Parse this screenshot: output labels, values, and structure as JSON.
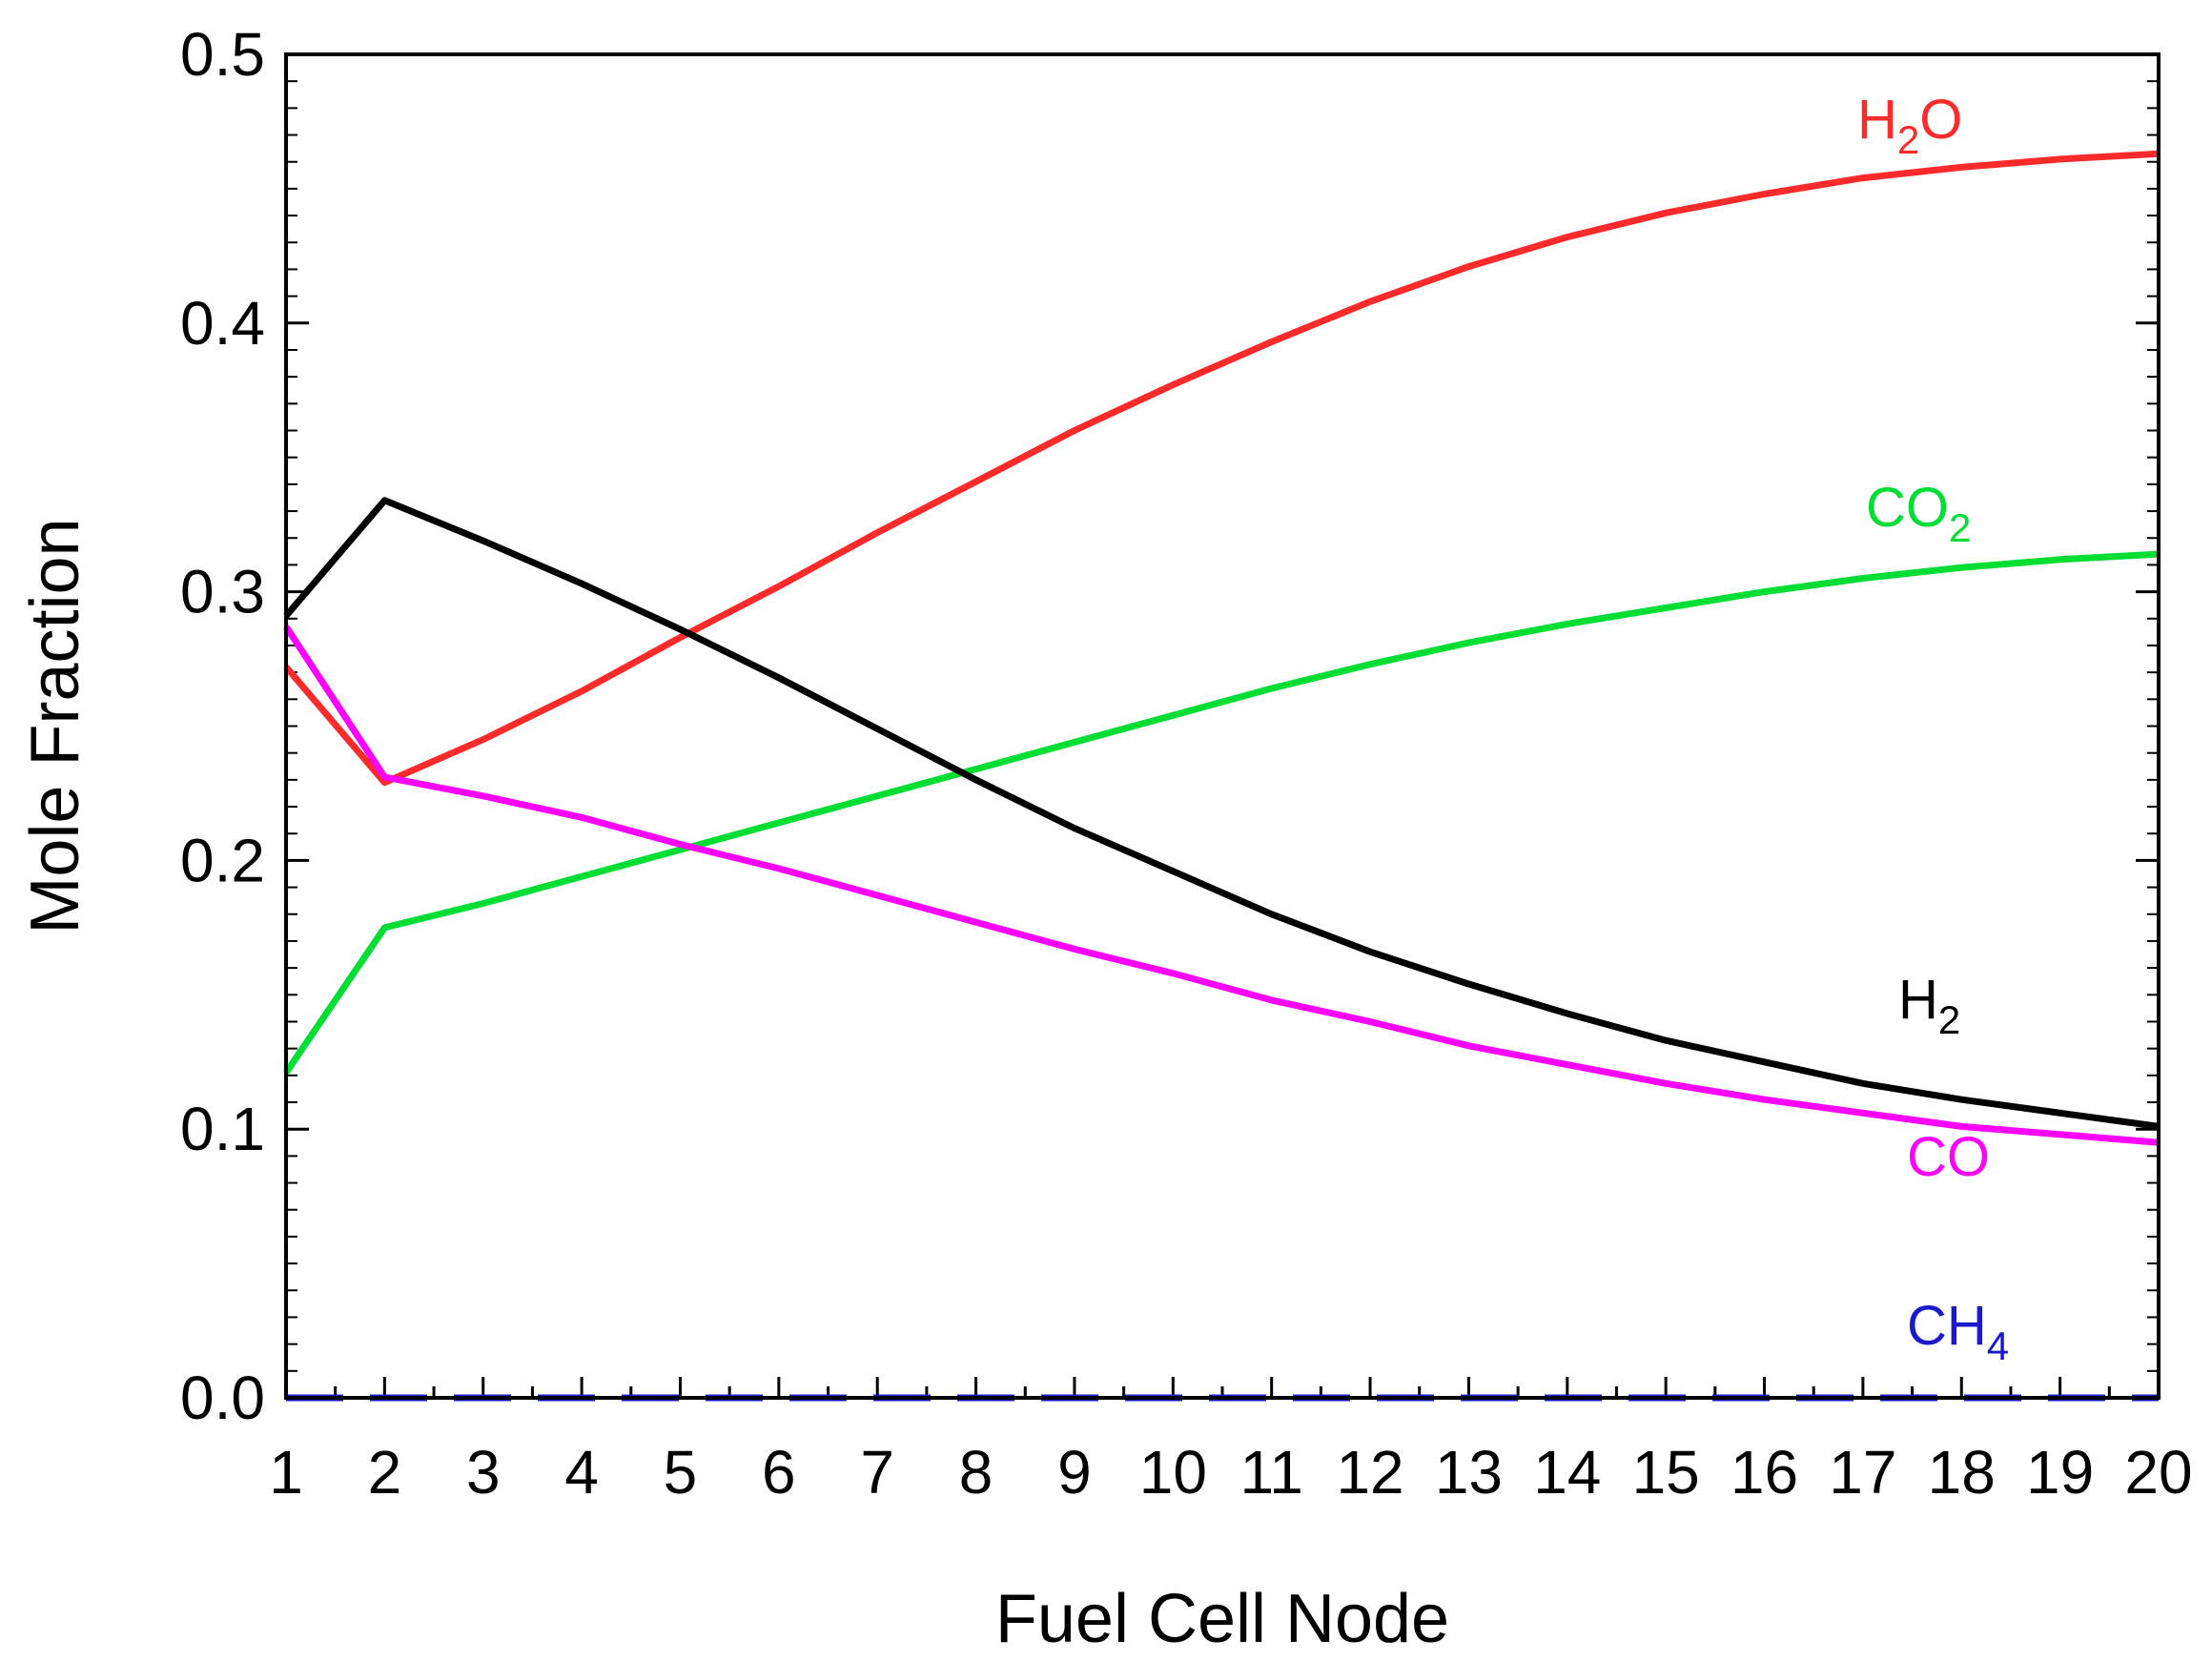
{
  "chart_data": {
    "type": "line",
    "title": "",
    "xlabel": "Fuel Cell Node",
    "ylabel": "Mole Fraction",
    "xlim": [
      1,
      20
    ],
    "ylim": [
      0.0,
      0.5
    ],
    "xticks": [
      1,
      2,
      3,
      4,
      5,
      6,
      7,
      8,
      9,
      10,
      11,
      12,
      13,
      14,
      15,
      16,
      17,
      18,
      19,
      20
    ],
    "yticks": [
      0.0,
      0.1,
      0.2,
      0.3,
      0.4,
      0.5
    ],
    "ytick_labels": [
      "0.0",
      "0.1",
      "0.2",
      "0.3",
      "0.4",
      "0.5"
    ],
    "x": [
      1,
      2,
      3,
      4,
      5,
      6,
      7,
      8,
      9,
      10,
      11,
      12,
      13,
      14,
      15,
      16,
      17,
      18,
      19,
      20
    ],
    "series": [
      {
        "name": "H2O",
        "label": "H",
        "sub": "2",
        "suffix": "O",
        "color": "#ff2a2a",
        "dashed": false,
        "values": [
          0.272,
          0.229,
          0.245,
          0.263,
          0.283,
          0.302,
          0.322,
          0.341,
          0.36,
          0.377,
          0.393,
          0.408,
          0.421,
          0.432,
          0.441,
          0.448,
          0.454,
          0.458,
          0.461,
          0.463
        ]
      },
      {
        "name": "CO2",
        "label": "CO",
        "sub": "2",
        "suffix": "",
        "color": "#00dd33",
        "dashed": false,
        "values": [
          0.121,
          0.175,
          0.184,
          0.194,
          0.204,
          0.214,
          0.224,
          0.234,
          0.244,
          0.254,
          0.264,
          0.273,
          0.281,
          0.288,
          0.294,
          0.3,
          0.305,
          0.309,
          0.312,
          0.314
        ]
      },
      {
        "name": "H2",
        "label": "H",
        "sub": "2",
        "suffix": "",
        "color": "#000000",
        "dashed": false,
        "values": [
          0.291,
          0.334,
          0.319,
          0.303,
          0.286,
          0.268,
          0.249,
          0.23,
          0.212,
          0.196,
          0.18,
          0.166,
          0.154,
          0.143,
          0.133,
          0.125,
          0.117,
          0.111,
          0.106,
          0.101
        ]
      },
      {
        "name": "CO",
        "label": "CO",
        "sub": "",
        "suffix": "",
        "color": "#ff00ff",
        "dashed": false,
        "values": [
          0.287,
          0.231,
          0.224,
          0.216,
          0.206,
          0.197,
          0.187,
          0.177,
          0.167,
          0.158,
          0.148,
          0.14,
          0.131,
          0.124,
          0.117,
          0.111,
          0.106,
          0.101,
          0.098,
          0.095
        ]
      },
      {
        "name": "CH4",
        "label": "CH",
        "sub": "4",
        "suffix": "",
        "color": "#1a1acc",
        "dashed": true,
        "values": [
          0,
          0,
          0,
          0,
          0,
          0,
          0,
          0,
          0,
          0,
          0,
          0,
          0,
          0,
          0,
          0,
          0,
          0,
          0,
          0
        ]
      }
    ]
  }
}
